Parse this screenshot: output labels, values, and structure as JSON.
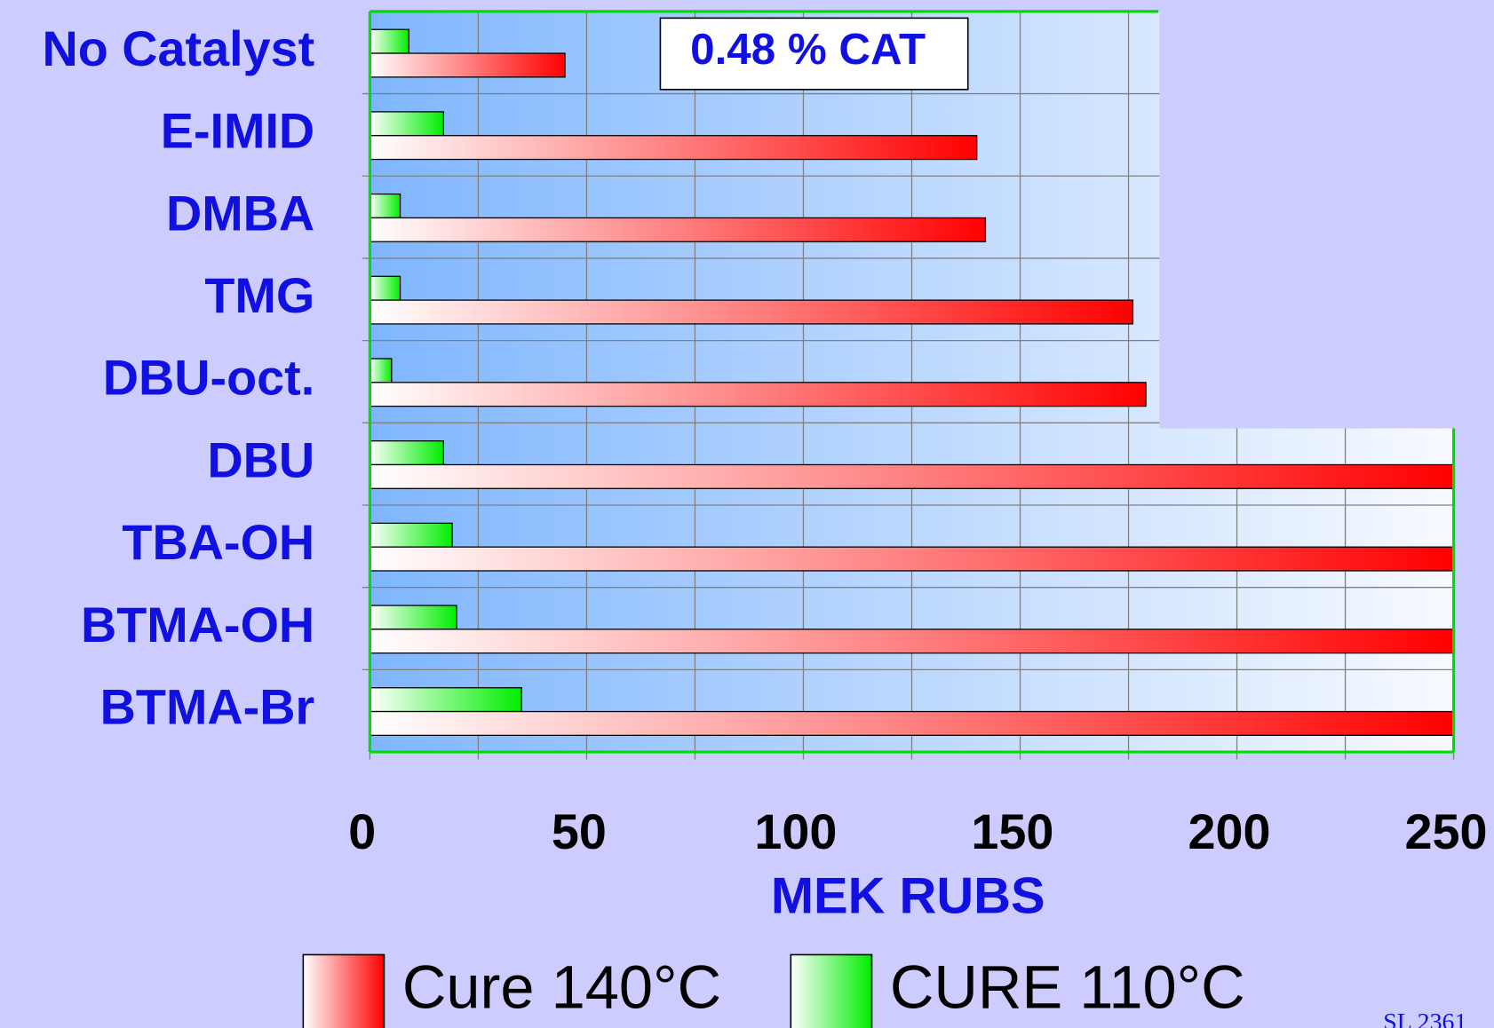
{
  "chart_data": {
    "type": "bar",
    "orientation": "horizontal",
    "categories": [
      "No Catalyst",
      "E-IMID",
      "DMBA",
      "TMG",
      "DBU-oct.",
      "DBU",
      "TBA-OH",
      "BTMA-OH",
      "BTMA-Br"
    ],
    "series": [
      {
        "name": "Cure 140°C",
        "color": "#ff0000",
        "values": [
          45,
          140,
          142,
          176,
          179,
          250,
          250,
          250,
          250
        ]
      },
      {
        "name": "CURE 110°C",
        "color": "#00ee00",
        "values": [
          9,
          17,
          7,
          7,
          5,
          17,
          19,
          20,
          35
        ]
      }
    ],
    "xlabel": "MEK RUBS",
    "annotation": "0.48 % CAT",
    "xlim": [
      0,
      250
    ],
    "xticks": [
      0,
      50,
      100,
      150,
      200,
      250
    ],
    "minor_xticks": [
      25,
      75,
      125,
      175,
      225
    ],
    "grid": true,
    "footnote": "SL 2361"
  }
}
